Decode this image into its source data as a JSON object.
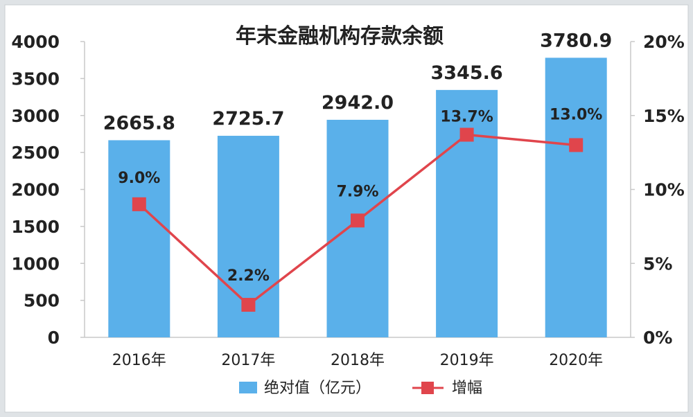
{
  "chart_data": {
    "type": "bar",
    "title": "年末金融机构存款余额",
    "categories": [
      "2016年",
      "2017年",
      "2018年",
      "2019年",
      "2020年"
    ],
    "series": [
      {
        "name": "绝对值（亿元）",
        "type": "bar",
        "axis": "left",
        "values": [
          2665.8,
          2725.7,
          2942.0,
          3345.6,
          3780.9
        ],
        "labels": [
          "2665.8",
          "2725.7",
          "2942.0",
          "3345.6",
          "3780.9"
        ],
        "color": "#5ab0ea"
      },
      {
        "name": "增幅",
        "type": "line",
        "axis": "right",
        "values": [
          9.0,
          2.2,
          7.9,
          13.7,
          13.0
        ],
        "labels": [
          "9.0%",
          "2.2%",
          "7.9%",
          "13.7%",
          "13.0%"
        ],
        "color": "#e0454c"
      }
    ],
    "y_left": {
      "ylim": [
        0,
        4000
      ],
      "ticks": [
        "0",
        "500",
        "1000",
        "1500",
        "2000",
        "2500",
        "3000",
        "3500",
        "4000"
      ]
    },
    "y_right": {
      "ylim": [
        0,
        20
      ],
      "ticks": [
        "0%",
        "5%",
        "10%",
        "15%",
        "20%"
      ]
    },
    "grid": false,
    "legend_position": "bottom"
  }
}
